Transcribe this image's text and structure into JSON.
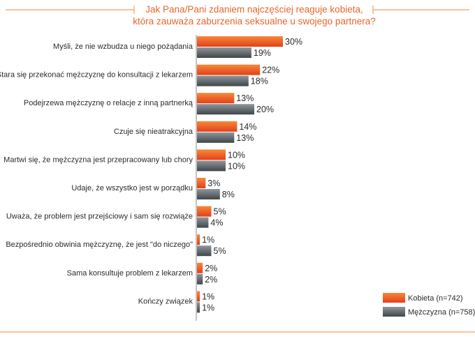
{
  "colors": {
    "accent": "#ee5a24",
    "female_top": "#f7893a",
    "female_bottom": "#e2401b",
    "male_top": "#8f979c",
    "male_bottom": "#3f474b",
    "axis": "#8a8a8a",
    "frame": "#f0a060"
  },
  "chart_data": {
    "type": "bar",
    "orientation": "horizontal",
    "title": "Jak Pana/Pani zdaniem najczęściej reaguje kobieta, która zauważa zaburzenia seksualne u swojego partnera?",
    "title_lines": [
      "Jak Pana/Pani zdaniem najczęściej reaguje kobieta,",
      "która zauważa zaburzenia seksualne u swojego partnera?"
    ],
    "categories": [
      "Myśli, że nie wzbudza u niego pożądania",
      "Stara się przekonać mężczyznę do konsultacji z lekarzem",
      "Podejrzewa mężczyznę o relacje z inną partnerką",
      "Czuje się nieatrakcyjna",
      "Martwi się, że mężczyzna jest przepracowany lub chory",
      "Udaje, że wszystko jest w porządku",
      "Uważa, że problem jest przejściowy i sam się rozwiąże",
      "Bezpośrednio obwinia mężczyznę, że jest \"do niczego\"",
      "Sama konsultuje problem z lekarzem",
      "Kończy związek"
    ],
    "series": [
      {
        "name": "Kobieta (n=742)",
        "values": [
          30,
          22,
          13,
          14,
          10,
          3,
          5,
          1,
          2,
          1
        ],
        "labels": [
          "30%",
          "22%",
          "13%",
          "14%",
          "10%",
          "3%",
          "5%",
          "1%",
          "2%",
          "1%"
        ]
      },
      {
        "name": "Mężczyzna (n=758)",
        "values": [
          19,
          18,
          20,
          13,
          10,
          8,
          4,
          5,
          2,
          1
        ],
        "labels": [
          "19%",
          "18%",
          "20%",
          "13%",
          "10%",
          "8%",
          "4%",
          "5%",
          "2%",
          "1%"
        ]
      }
    ],
    "xlim": [
      0,
      30
    ],
    "legend": "bottom-right"
  }
}
